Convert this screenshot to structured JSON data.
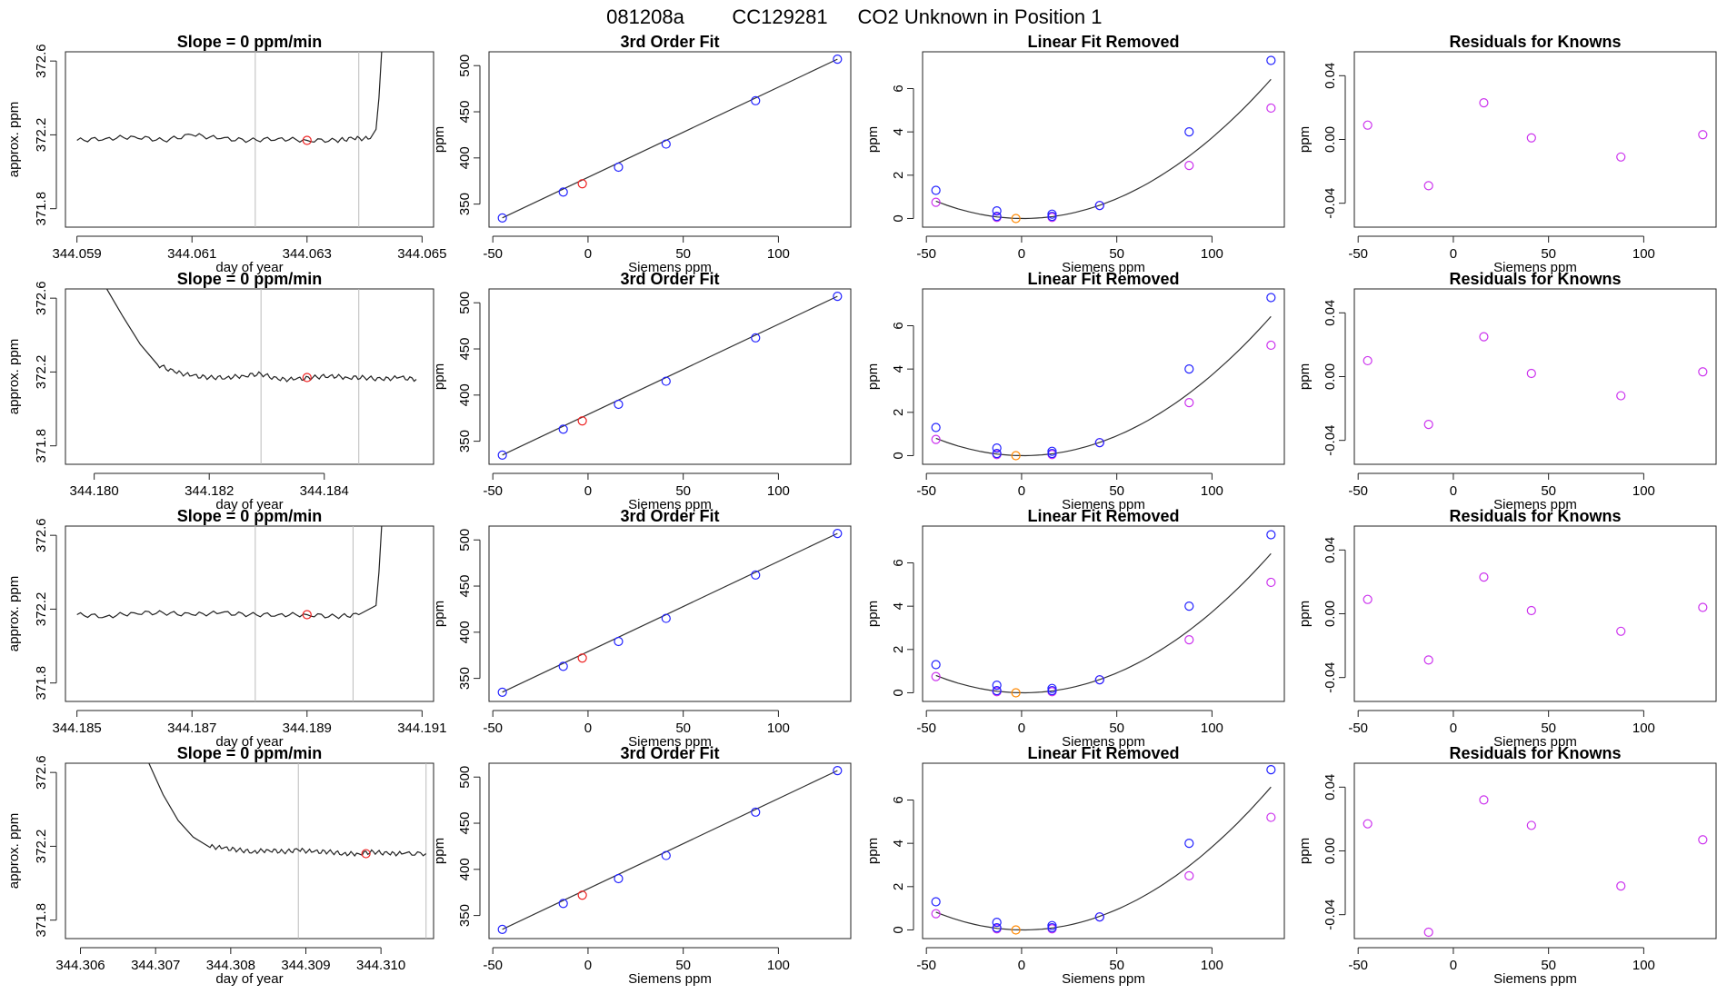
{
  "figure": {
    "title_parts": [
      "081208a",
      "CC129281",
      "CO2 Unknown in Position  1"
    ],
    "colors": {
      "trace": "#222222",
      "vline": "#bbbbbb",
      "known": "#2222ff",
      "unknown": "#ee2222",
      "unknown_lin": "#ff8800",
      "residual": "#cc33ee",
      "fit": "#333333"
    }
  },
  "chart_data": [
    {
      "type": "line",
      "row": 0,
      "title": "Slope =  0  ppm/min",
      "xlabel": "day of year",
      "ylabel": "approx. ppm",
      "xlim": [
        344.0588,
        344.0652
      ],
      "ylim": [
        371.7,
        372.65
      ],
      "xticks": [
        344.059,
        344.061,
        344.063,
        344.065
      ],
      "xtick_labels": [
        "344.059",
        "344.061",
        "344.063",
        "344.065"
      ],
      "yticks": [
        371.8,
        372.2,
        372.6
      ],
      "ytick_labels": [
        "371.8",
        "372.2",
        "372.6"
      ],
      "vlines": [
        344.0621,
        344.0639
      ],
      "marker": {
        "x": 344.063,
        "y": 372.17
      },
      "series": [
        {
          "name": "",
          "x": [
            344.059,
            344.0595,
            344.06,
            344.0605,
            344.061,
            344.0615,
            344.062,
            344.0625,
            344.063,
            344.0635,
            344.0638,
            344.0641,
            344.0642,
            344.06425,
            344.0643
          ],
          "y": [
            372.17,
            372.18,
            372.19,
            372.17,
            372.2,
            372.18,
            372.17,
            372.18,
            372.17,
            372.17,
            372.18,
            372.18,
            372.23,
            372.4,
            372.66
          ]
        }
      ]
    },
    {
      "type": "scatter",
      "row": 0,
      "title": "3rd Order Fit",
      "xlabel": "Siemens ppm",
      "ylabel": "ppm",
      "xlim": [
        -52,
        138
      ],
      "ylim": [
        325,
        515
      ],
      "xticks": [
        -50,
        0,
        50,
        100
      ],
      "xtick_labels": [
        "-50",
        "0",
        "50",
        "100"
      ],
      "yticks": [
        350,
        400,
        450,
        500
      ],
      "ytick_labels": [
        "350",
        "400",
        "450",
        "500"
      ],
      "known": {
        "x": [
          -45,
          -13,
          16,
          41,
          88,
          131
        ],
        "y": [
          335,
          363,
          390,
          415,
          462,
          507
        ]
      },
      "unknown": {
        "x": [
          -3
        ],
        "y": [
          372
        ]
      },
      "fit": {
        "x": [
          -45,
          131
        ],
        "y": [
          335,
          507
        ]
      }
    },
    {
      "type": "scatter",
      "row": 0,
      "title": "Linear Fit Removed",
      "xlabel": "Siemens ppm",
      "ylabel": "ppm",
      "xlim": [
        -52,
        138
      ],
      "ylim": [
        -0.4,
        7.7
      ],
      "xticks": [
        -50,
        0,
        50,
        100
      ],
      "xtick_labels": [
        "-50",
        "0",
        "50",
        "100"
      ],
      "yticks": [
        0,
        2,
        4,
        6
      ],
      "ytick_labels": [
        "0",
        "2",
        "4",
        "6"
      ],
      "known": {
        "x": [
          -45,
          -13,
          -13,
          16,
          16,
          41,
          88,
          131
        ],
        "y": [
          1.3,
          0.35,
          0.1,
          0.2,
          0.1,
          0.6,
          4.0,
          7.3
        ]
      },
      "residual": {
        "x": [
          -45,
          -13,
          16,
          41,
          88,
          131
        ],
        "y": [
          0.75,
          0.05,
          0.05,
          0.6,
          2.45,
          5.1
        ]
      },
      "unknown": {
        "x": [
          -3
        ],
        "y": [
          0.0
        ]
      },
      "fit": {
        "a": 0.00038,
        "b": -0.0007,
        "c": 0.0
      }
    },
    {
      "type": "scatter",
      "row": 0,
      "title": "Residuals for Knowns",
      "xlabel": "Siemens ppm",
      "ylabel": "ppm",
      "xlim": [
        -52,
        138
      ],
      "ylim": [
        -0.055,
        0.055
      ],
      "xticks": [
        -50,
        0,
        50,
        100
      ],
      "xtick_labels": [
        "-50",
        "0",
        "50",
        "100"
      ],
      "yticks": [
        -0.04,
        0.0,
        0.04
      ],
      "ytick_labels": [
        "-0.04",
        "0.00",
        "0.04"
      ],
      "residual": {
        "x": [
          -45,
          -13,
          16,
          41,
          88,
          131
        ],
        "y": [
          0.009,
          -0.029,
          0.023,
          0.001,
          -0.011,
          0.003
        ]
      }
    },
    {
      "type": "line",
      "row": 1,
      "title": "Slope =  0  ppm/min",
      "xlabel": "day of year",
      "ylabel": "approx. ppm",
      "xlim": [
        344.1795,
        344.1859
      ],
      "ylim": [
        371.7,
        372.65
      ],
      "xticks": [
        344.18,
        344.182,
        344.184
      ],
      "xtick_labels": [
        "344.180",
        "344.182",
        "344.184"
      ],
      "yticks": [
        371.8,
        372.2,
        372.6
      ],
      "ytick_labels": [
        "371.8",
        "372.2",
        "372.6"
      ],
      "vlines": [
        344.1829,
        344.1846
      ],
      "marker": {
        "x": 344.1837,
        "y": 372.17
      },
      "series": [
        {
          "name": "",
          "x": [
            344.1802,
            344.1805,
            344.1808,
            344.1811,
            344.1814,
            344.1817,
            344.182,
            344.1823,
            344.1826,
            344.1829,
            344.1832,
            344.1835,
            344.1838,
            344.1841,
            344.1844,
            344.1847,
            344.185,
            344.1853,
            344.1856
          ],
          "y": [
            372.66,
            372.5,
            372.35,
            372.24,
            372.2,
            372.18,
            372.17,
            372.17,
            372.18,
            372.19,
            372.16,
            372.16,
            372.17,
            372.18,
            372.17,
            372.17,
            372.16,
            372.17,
            372.16
          ]
        }
      ]
    },
    {
      "type": "scatter",
      "row": 1,
      "title": "3rd Order Fit",
      "xlabel": "Siemens ppm",
      "ylabel": "ppm",
      "xlim": [
        -52,
        138
      ],
      "ylim": [
        325,
        515
      ],
      "xticks": [
        -50,
        0,
        50,
        100
      ],
      "xtick_labels": [
        "-50",
        "0",
        "50",
        "100"
      ],
      "yticks": [
        350,
        400,
        450,
        500
      ],
      "ytick_labels": [
        "350",
        "400",
        "450",
        "500"
      ],
      "known": {
        "x": [
          -45,
          -13,
          16,
          41,
          88,
          131
        ],
        "y": [
          335,
          363,
          390,
          415,
          462,
          507
        ]
      },
      "unknown": {
        "x": [
          -3
        ],
        "y": [
          372
        ]
      },
      "fit": {
        "x": [
          -45,
          131
        ],
        "y": [
          335,
          507
        ]
      }
    },
    {
      "type": "scatter",
      "row": 1,
      "title": "Linear Fit Removed",
      "xlabel": "Siemens ppm",
      "ylabel": "ppm",
      "xlim": [
        -52,
        138
      ],
      "ylim": [
        -0.4,
        7.7
      ],
      "xticks": [
        -50,
        0,
        50,
        100
      ],
      "xtick_labels": [
        "-50",
        "0",
        "50",
        "100"
      ],
      "yticks": [
        0,
        2,
        4,
        6
      ],
      "ytick_labels": [
        "0",
        "2",
        "4",
        "6"
      ],
      "known": {
        "x": [
          -45,
          -13,
          -13,
          16,
          16,
          41,
          88,
          131
        ],
        "y": [
          1.3,
          0.35,
          0.1,
          0.2,
          0.1,
          0.6,
          4.0,
          7.3
        ]
      },
      "residual": {
        "x": [
          -45,
          -13,
          16,
          41,
          88,
          131
        ],
        "y": [
          0.75,
          0.05,
          0.05,
          0.6,
          2.45,
          5.1
        ]
      },
      "unknown": {
        "x": [
          -3
        ],
        "y": [
          0.0
        ]
      },
      "fit": {
        "a": 0.00038,
        "b": -0.0007,
        "c": 0.0
      }
    },
    {
      "type": "scatter",
      "row": 1,
      "title": "Residuals for Knowns",
      "xlabel": "Siemens ppm",
      "ylabel": "ppm",
      "xlim": [
        -52,
        138
      ],
      "ylim": [
        -0.055,
        0.055
      ],
      "xticks": [
        -50,
        0,
        50,
        100
      ],
      "xtick_labels": [
        "-50",
        "0",
        "50",
        "100"
      ],
      "yticks": [
        -0.04,
        0.0,
        0.04
      ],
      "ytick_labels": [
        "-0.04",
        "0.00",
        "0.04"
      ],
      "residual": {
        "x": [
          -45,
          -13,
          16,
          41,
          88,
          131
        ],
        "y": [
          0.01,
          -0.03,
          0.025,
          0.002,
          -0.012,
          0.003
        ]
      }
    },
    {
      "type": "line",
      "row": 2,
      "title": "Slope =  0  ppm/min",
      "xlabel": "day of year",
      "ylabel": "approx. ppm",
      "xlim": [
        344.1848,
        344.1912
      ],
      "ylim": [
        371.7,
        372.65
      ],
      "xticks": [
        344.185,
        344.187,
        344.189,
        344.191
      ],
      "xtick_labels": [
        "344.185",
        "344.187",
        "344.189",
        "344.191"
      ],
      "yticks": [
        371.8,
        372.2,
        372.6
      ],
      "ytick_labels": [
        "371.8",
        "372.2",
        "372.6"
      ],
      "vlines": [
        344.1881,
        344.1898
      ],
      "marker": {
        "x": 344.189,
        "y": 372.17
      },
      "series": [
        {
          "name": "",
          "x": [
            344.185,
            344.1855,
            344.186,
            344.1865,
            344.187,
            344.1875,
            344.188,
            344.1885,
            344.189,
            344.1895,
            344.1899,
            344.1902,
            344.19025,
            344.1903
          ],
          "y": [
            372.17,
            372.16,
            372.18,
            372.18,
            372.17,
            372.18,
            372.17,
            372.17,
            372.17,
            372.16,
            372.17,
            372.22,
            372.4,
            372.66
          ]
        }
      ]
    },
    {
      "type": "scatter",
      "row": 2,
      "title": "3rd Order Fit",
      "xlabel": "Siemens ppm",
      "ylabel": "ppm",
      "xlim": [
        -52,
        138
      ],
      "ylim": [
        325,
        515
      ],
      "xticks": [
        -50,
        0,
        50,
        100
      ],
      "xtick_labels": [
        "-50",
        "0",
        "50",
        "100"
      ],
      "yticks": [
        350,
        400,
        450,
        500
      ],
      "ytick_labels": [
        "350",
        "400",
        "450",
        "500"
      ],
      "known": {
        "x": [
          -45,
          -13,
          16,
          41,
          88,
          131
        ],
        "y": [
          335,
          363,
          390,
          415,
          462,
          507
        ]
      },
      "unknown": {
        "x": [
          -3
        ],
        "y": [
          372
        ]
      },
      "fit": {
        "x": [
          -45,
          131
        ],
        "y": [
          335,
          507
        ]
      }
    },
    {
      "type": "scatter",
      "row": 2,
      "title": "Linear Fit Removed",
      "xlabel": "Siemens ppm",
      "ylabel": "ppm",
      "xlim": [
        -52,
        138
      ],
      "ylim": [
        -0.4,
        7.7
      ],
      "xticks": [
        -50,
        0,
        50,
        100
      ],
      "xtick_labels": [
        "-50",
        "0",
        "50",
        "100"
      ],
      "yticks": [
        0,
        2,
        4,
        6
      ],
      "ytick_labels": [
        "0",
        "2",
        "4",
        "6"
      ],
      "known": {
        "x": [
          -45,
          -13,
          -13,
          16,
          16,
          41,
          88,
          131
        ],
        "y": [
          1.3,
          0.35,
          0.1,
          0.2,
          0.1,
          0.6,
          4.0,
          7.3
        ]
      },
      "residual": {
        "x": [
          -45,
          -13,
          16,
          41,
          88,
          131
        ],
        "y": [
          0.75,
          0.05,
          0.05,
          0.6,
          2.45,
          5.1
        ]
      },
      "unknown": {
        "x": [
          -3
        ],
        "y": [
          0.0
        ]
      },
      "fit": {
        "a": 0.00038,
        "b": -0.0007,
        "c": 0.0
      }
    },
    {
      "type": "scatter",
      "row": 2,
      "title": "Residuals for Knowns",
      "xlabel": "Siemens ppm",
      "ylabel": "ppm",
      "xlim": [
        -52,
        138
      ],
      "ylim": [
        -0.055,
        0.055
      ],
      "xticks": [
        -50,
        0,
        50,
        100
      ],
      "xtick_labels": [
        "-50",
        "0",
        "50",
        "100"
      ],
      "yticks": [
        -0.04,
        0.0,
        0.04
      ],
      "ytick_labels": [
        "-0.04",
        "0.00",
        "0.04"
      ],
      "residual": {
        "x": [
          -45,
          -13,
          16,
          41,
          88,
          131
        ],
        "y": [
          0.009,
          -0.029,
          0.023,
          0.002,
          -0.011,
          0.004
        ]
      }
    },
    {
      "type": "line",
      "row": 3,
      "title": "Slope =  0  ppm/min",
      "xlabel": "day of year",
      "ylabel": "approx. ppm",
      "xlim": [
        344.3058,
        344.3107
      ],
      "ylim": [
        371.7,
        372.65
      ],
      "xticks": [
        344.306,
        344.307,
        344.308,
        344.309,
        344.31
      ],
      "xtick_labels": [
        "344.306",
        "344.307",
        "344.308",
        "344.309",
        "344.310"
      ],
      "yticks": [
        371.8,
        372.2,
        372.6
      ],
      "ytick_labels": [
        "371.8",
        "372.2",
        "372.6"
      ],
      "vlines": [
        344.3089,
        344.3106
      ],
      "marker": {
        "x": 344.3098,
        "y": 372.16
      },
      "series": [
        {
          "name": "",
          "x": [
            344.3069,
            344.3071,
            344.3073,
            344.3075,
            344.3077,
            344.3079,
            344.3081,
            344.3083,
            344.3085,
            344.3087,
            344.3089,
            344.3091,
            344.3093,
            344.3095,
            344.3097,
            344.3099,
            344.3101,
            344.3103,
            344.3106
          ],
          "y": [
            372.66,
            372.48,
            372.34,
            372.25,
            372.2,
            372.19,
            372.18,
            372.17,
            372.18,
            372.17,
            372.18,
            372.17,
            372.17,
            372.16,
            372.16,
            372.17,
            372.16,
            372.16,
            372.16
          ]
        }
      ]
    },
    {
      "type": "scatter",
      "row": 3,
      "title": "3rd Order Fit",
      "xlabel": "Siemens ppm",
      "ylabel": "ppm",
      "xlim": [
        -52,
        138
      ],
      "ylim": [
        325,
        515
      ],
      "xticks": [
        -50,
        0,
        50,
        100
      ],
      "xtick_labels": [
        "-50",
        "0",
        "50",
        "100"
      ],
      "yticks": [
        350,
        400,
        450,
        500
      ],
      "ytick_labels": [
        "350",
        "400",
        "450",
        "500"
      ],
      "known": {
        "x": [
          -45,
          -13,
          16,
          41,
          88,
          131
        ],
        "y": [
          335,
          363,
          390,
          415,
          462,
          507
        ]
      },
      "unknown": {
        "x": [
          -3
        ],
        "y": [
          372
        ]
      },
      "fit": {
        "x": [
          -45,
          131
        ],
        "y": [
          335,
          507
        ]
      }
    },
    {
      "type": "scatter",
      "row": 3,
      "title": "Linear Fit Removed",
      "xlabel": "Siemens ppm",
      "ylabel": "ppm",
      "xlim": [
        -52,
        138
      ],
      "ylim": [
        -0.4,
        7.7
      ],
      "xticks": [
        -50,
        0,
        50,
        100
      ],
      "xtick_labels": [
        "-50",
        "0",
        "50",
        "100"
      ],
      "yticks": [
        0,
        2,
        4,
        6
      ],
      "ytick_labels": [
        "0",
        "2",
        "4",
        "6"
      ],
      "known": {
        "x": [
          -45,
          -13,
          -13,
          16,
          16,
          41,
          88,
          131
        ],
        "y": [
          1.3,
          0.35,
          0.1,
          0.2,
          0.1,
          0.6,
          4.0,
          7.4
        ]
      },
      "residual": {
        "x": [
          -45,
          -13,
          16,
          41,
          88,
          131
        ],
        "y": [
          0.75,
          0.05,
          0.05,
          0.6,
          2.5,
          5.2
        ]
      },
      "unknown": {
        "x": [
          -3
        ],
        "y": [
          0.0
        ]
      },
      "fit": {
        "a": 0.00039,
        "b": -0.0007,
        "c": 0.0
      }
    },
    {
      "type": "scatter",
      "row": 3,
      "title": "Residuals for Knowns",
      "xlabel": "Siemens ppm",
      "ylabel": "ppm",
      "xlim": [
        -52,
        138
      ],
      "ylim": [
        -0.055,
        0.055
      ],
      "xticks": [
        -50,
        0,
        50,
        100
      ],
      "xtick_labels": [
        "-50",
        "0",
        "50",
        "100"
      ],
      "yticks": [
        -0.04,
        0.0,
        0.04
      ],
      "ytick_labels": [
        "-0.04",
        "0.00",
        "0.04"
      ],
      "residual": {
        "x": [
          -45,
          -13,
          16,
          41,
          88,
          131
        ],
        "y": [
          0.017,
          -0.051,
          0.032,
          0.016,
          -0.022,
          0.007
        ]
      }
    }
  ]
}
